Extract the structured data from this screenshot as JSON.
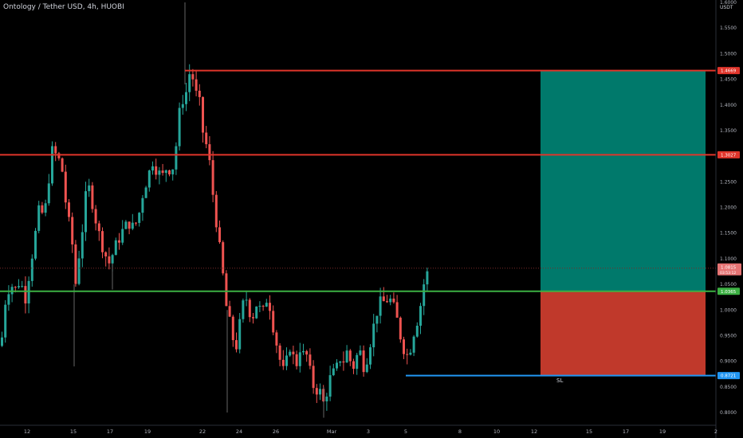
{
  "header": {
    "title": "Ontology / Tether USD, 4h, HUOBI"
  },
  "axis": {
    "unit": "USDT"
  },
  "annotations": {
    "sl_label": "SL"
  },
  "colors": {
    "background": "#000000",
    "up": "#26a69a",
    "down": "#ef5350",
    "resistance": "#e0352b",
    "support": "#3cb043",
    "stop": "#2196f3",
    "profit_zone": "#00796b",
    "loss_zone": "#c0392b",
    "axis_text": "#b2b5be"
  },
  "chart_data": {
    "type": "candlestick",
    "title": "Ontology / Tether USD, 4h, HUOBI",
    "ylabel": "USDT",
    "ylim": [
      0.775,
      1.6
    ],
    "y_ticks": [
      "1.6000",
      "1.5500",
      "1.5000",
      "1.4500",
      "1.4000",
      "1.3500",
      "1.3000",
      "1.2500",
      "1.2000",
      "1.1500",
      "1.1000",
      "1.0500",
      "1.0000",
      "0.9500",
      "0.9000",
      "0.8500",
      "0.8000"
    ],
    "x_ticks": [
      "12",
      "15",
      "17",
      "19",
      "22",
      "24",
      "26",
      "Mar",
      "3",
      "5",
      "8",
      "10",
      "12",
      "15",
      "17",
      "19",
      "2"
    ],
    "horizontal_levels": [
      {
        "label": "1.4669",
        "value": 1.4669,
        "kind": "resistance"
      },
      {
        "label": "1.3027",
        "value": 1.3027,
        "kind": "resistance"
      },
      {
        "label": "1.0365",
        "value": 1.0365,
        "kind": "support"
      },
      {
        "label": "0.8721",
        "value": 0.8721,
        "kind": "stop"
      }
    ],
    "last_price": {
      "label": "1.0815",
      "countdown": "03:53:12",
      "value": 1.0815
    },
    "position": {
      "entry": 1.0365,
      "target": 1.4669,
      "stop": 0.8721,
      "stop_label": "SL"
    },
    "price_path": [
      [
        0,
        0.93
      ],
      [
        6,
        1.03
      ],
      [
        12,
        1.05
      ],
      [
        18,
        1.04
      ],
      [
        24,
        1.06
      ],
      [
        30,
        1.02
      ],
      [
        36,
        1.08
      ],
      [
        42,
        1.14
      ],
      [
        48,
        1.2
      ],
      [
        54,
        1.18
      ],
      [
        60,
        1.26
      ],
      [
        64,
        1.31
      ],
      [
        70,
        1.3
      ],
      [
        76,
        1.28
      ],
      [
        80,
        1.22
      ],
      [
        85,
        1.17
      ],
      [
        90,
        1.12
      ],
      [
        94,
        1.04
      ],
      [
        97,
        1.1
      ],
      [
        102,
        1.16
      ],
      [
        108,
        1.25
      ],
      [
        113,
        1.22
      ],
      [
        118,
        1.18
      ],
      [
        124,
        1.14
      ],
      [
        130,
        1.11
      ],
      [
        136,
        1.09
      ],
      [
        142,
        1.12
      ],
      [
        148,
        1.14
      ],
      [
        154,
        1.16
      ],
      [
        160,
        1.17
      ],
      [
        166,
        1.16
      ],
      [
        172,
        1.18
      ],
      [
        178,
        1.23
      ],
      [
        184,
        1.26
      ],
      [
        190,
        1.29
      ],
      [
        196,
        1.27
      ],
      [
        202,
        1.26
      ],
      [
        208,
        1.28
      ],
      [
        214,
        1.27
      ],
      [
        218,
        1.3
      ],
      [
        222,
        1.36
      ],
      [
        226,
        1.42
      ],
      [
        230,
        1.4
      ],
      [
        234,
        1.45
      ],
      [
        238,
        1.47
      ],
      [
        242,
        1.44
      ],
      [
        246,
        1.41
      ],
      [
        250,
        1.4
      ],
      [
        254,
        1.33
      ],
      [
        258,
        1.32
      ],
      [
        262,
        1.28
      ],
      [
        266,
        1.22
      ],
      [
        270,
        1.17
      ],
      [
        274,
        1.12
      ],
      [
        278,
        1.07
      ],
      [
        282,
        1.01
      ],
      [
        286,
        0.98
      ],
      [
        290,
        0.95
      ],
      [
        294,
        0.92
      ],
      [
        298,
        0.96
      ],
      [
        302,
        1.0
      ],
      [
        306,
        1.03
      ],
      [
        310,
        1.01
      ],
      [
        314,
        0.98
      ],
      [
        318,
        1.0
      ],
      [
        322,
        1.02
      ],
      [
        326,
        0.99
      ],
      [
        330,
        1.0
      ],
      [
        334,
        1.03
      ],
      [
        338,
        1.0
      ],
      [
        342,
        0.96
      ],
      [
        346,
        0.93
      ],
      [
        350,
        0.9
      ],
      [
        354,
        0.88
      ],
      [
        358,
        0.9
      ],
      [
        362,
        0.93
      ],
      [
        366,
        0.91
      ],
      [
        370,
        0.89
      ],
      [
        374,
        0.93
      ],
      [
        378,
        0.91
      ],
      [
        382,
        0.92
      ],
      [
        386,
        0.89
      ],
      [
        390,
        0.86
      ],
      [
        394,
        0.84
      ],
      [
        398,
        0.85
      ],
      [
        402,
        0.83
      ],
      [
        406,
        0.81
      ],
      [
        410,
        0.86
      ],
      [
        414,
        0.87
      ],
      [
        418,
        0.88
      ],
      [
        422,
        0.89
      ],
      [
        426,
        0.91
      ],
      [
        430,
        0.9
      ],
      [
        434,
        0.92
      ],
      [
        438,
        0.9
      ],
      [
        442,
        0.89
      ],
      [
        446,
        0.91
      ],
      [
        450,
        0.92
      ],
      [
        454,
        0.89
      ],
      [
        458,
        0.9
      ],
      [
        462,
        0.93
      ],
      [
        466,
        0.96
      ],
      [
        470,
        0.99
      ],
      [
        474,
        1.01
      ],
      [
        478,
        1.02
      ],
      [
        482,
        1.01
      ],
      [
        486,
        1.03
      ],
      [
        490,
        1.01
      ],
      [
        494,
        1.0
      ],
      [
        498,
        0.97
      ],
      [
        502,
        0.94
      ],
      [
        506,
        0.92
      ],
      [
        510,
        0.91
      ],
      [
        514,
        0.93
      ],
      [
        518,
        0.96
      ],
      [
        522,
        0.98
      ],
      [
        526,
        1.01
      ],
      [
        530,
        1.05
      ],
      [
        534,
        1.07
      ],
      [
        538,
        1.0815
      ]
    ]
  }
}
